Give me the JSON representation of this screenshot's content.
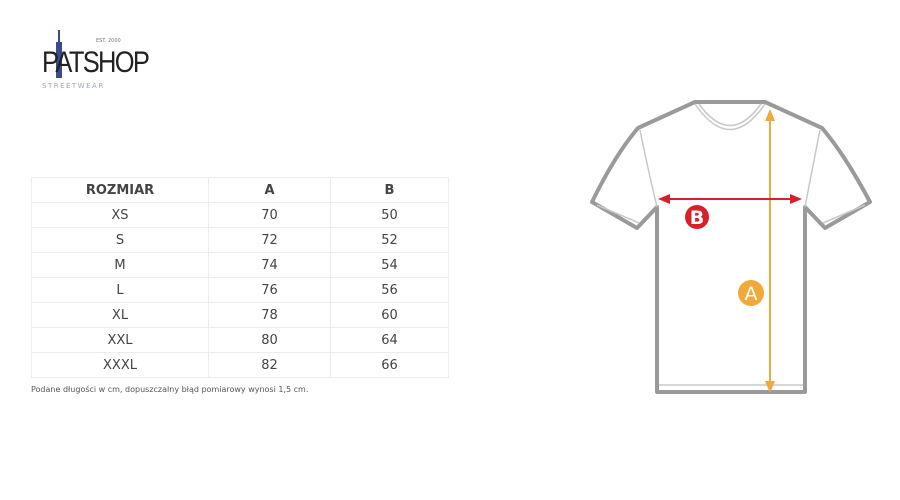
{
  "logo": {
    "text": "PATSHOP",
    "subtitle": "STREETWEAR",
    "est": "EST. 2000"
  },
  "size_table": {
    "headers": [
      "ROZMIAR",
      "A",
      "B"
    ],
    "rows": [
      [
        "XS",
        "70",
        "50"
      ],
      [
        "S",
        "72",
        "52"
      ],
      [
        "M",
        "74",
        "54"
      ],
      [
        "L",
        "76",
        "56"
      ],
      [
        "XL",
        "78",
        "60"
      ],
      [
        "XXL",
        "80",
        "64"
      ],
      [
        "XXXL",
        "82",
        "66"
      ]
    ]
  },
  "note": "Podane długości w cm, dopuszczalny błąd pomiarowy wynosi 1,5 cm.",
  "diagram": {
    "label_a": "A",
    "label_b": "B",
    "color_a": "#f0a93b",
    "color_b": "#d8202a",
    "outline_color": "#9a9a9a"
  }
}
